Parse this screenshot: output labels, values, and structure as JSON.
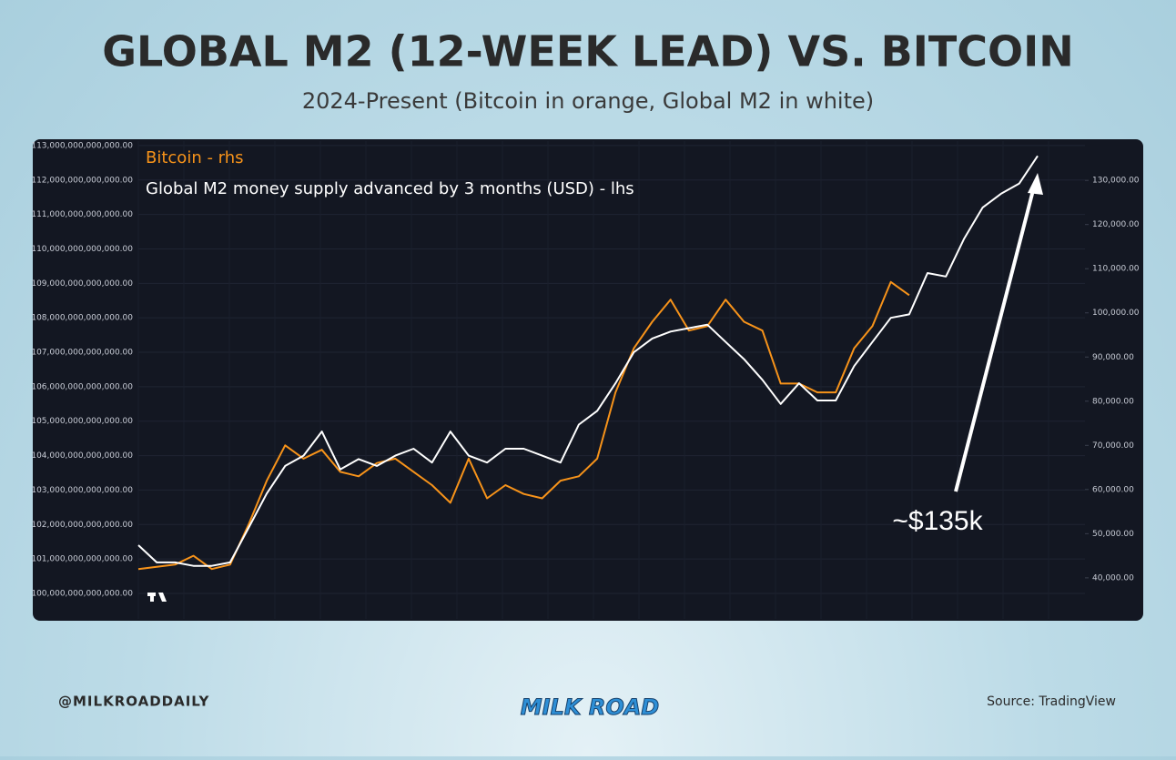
{
  "header": {
    "title": "GLOBAL M2 (12-WEEK LEAD) VS. BITCOIN",
    "subtitle": "2024-Present (Bitcoin in orange, Global M2 in white)"
  },
  "chart_data": {
    "type": "line",
    "categories": [
      null,
      null,
      null,
      null,
      null,
      null,
      null,
      null,
      null,
      null,
      null,
      null,
      null,
      null,
      null,
      null,
      null,
      null,
      null,
      null,
      null,
      null,
      null,
      null,
      null,
      null,
      null,
      null,
      null,
      null,
      null,
      null,
      null,
      null,
      null,
      null,
      null,
      null,
      null,
      null,
      null,
      null,
      null,
      null,
      null,
      null,
      null,
      null,
      null,
      null
    ],
    "series": [
      {
        "name": "Bitcoin - rhs",
        "color": "#f7931a",
        "axis": "y2",
        "values": [
          42000,
          42500,
          43000,
          45000,
          42000,
          43000,
          52000,
          62000,
          70000,
          67000,
          69000,
          64000,
          63000,
          66000,
          67000,
          64000,
          61000,
          57000,
          67000,
          58000,
          61000,
          59000,
          58000,
          62000,
          63000,
          67000,
          82000,
          92000,
          98000,
          103000,
          96000,
          97000,
          103000,
          98000,
          96000,
          84000,
          84000,
          82000,
          82000,
          92000,
          97000,
          107000,
          104000,
          null,
          null,
          null,
          null,
          null,
          null,
          null
        ]
      },
      {
        "name": "Global M2 money supply advanced by 3 months (USD) - lhs",
        "color": "#ffffff",
        "axis": "y",
        "values": [
          101400000000000.0,
          100900000000000.0,
          100900000000000.0,
          100800000000000.0,
          100800000000000.0,
          100900000000000.0,
          101900000000000.0,
          102900000000000.0,
          103700000000000.0,
          104000000000000.0,
          104700000000000.0,
          103600000000000.0,
          103900000000000.0,
          103700000000000.0,
          104000000000000.0,
          104200000000000.0,
          103800000000000.0,
          104700000000000.0,
          104000000000000.0,
          103800000000000.0,
          104200000000000.0,
          104200000000000.0,
          104000000000000.0,
          103800000000000.0,
          104900000000000.0,
          105300000000000.0,
          106100000000000.0,
          107000000000000.0,
          107400000000000.0,
          107600000000000.0,
          107700000000000.0,
          107800000000000.0,
          107300000000000.0,
          106800000000000.0,
          106200000000000.0,
          105500000000000.0,
          106100000000000.0,
          105600000000000.0,
          105600000000000.0,
          106600000000000.0,
          107300000000000.0,
          108000000000000.0,
          108100000000000.0,
          109300000000000.0,
          109200000000000.0,
          110300000000000.0,
          111200000000000.0,
          111600000000000.0,
          111900000000000.0,
          112700000000000.0
        ]
      }
    ],
    "ylim": [
      99260000000000.0,
      113130000000000.0
    ],
    "yticks": [
      {
        "value": 100000000000000,
        "label": "100,000,000,000,000.00"
      },
      {
        "value": 101000000000000,
        "label": "101,000,000,000,000.00"
      },
      {
        "value": 102000000000000,
        "label": "102,000,000,000,000.00"
      },
      {
        "value": 103000000000000,
        "label": "103,000,000,000,000.00"
      },
      {
        "value": 104000000000000,
        "label": "104,000,000,000,000.00"
      },
      {
        "value": 105000000000000,
        "label": "105,000,000,000,000.00"
      },
      {
        "value": 106000000000000,
        "label": "106,000,000,000,000.00"
      },
      {
        "value": 107000000000000,
        "label": "107,000,000,000,000.00"
      },
      {
        "value": 108000000000000,
        "label": "108,000,000,000,000.00"
      },
      {
        "value": 109000000000000,
        "label": "109,000,000,000,000.00"
      },
      {
        "value": 110000000000000,
        "label": "110,000,000,000,000.00"
      },
      {
        "value": 111000000000000,
        "label": "111,000,000,000,000.00"
      },
      {
        "value": 112000000000000,
        "label": "112,000,000,000,000.00"
      },
      {
        "value": 113000000000000,
        "label": "113,000,000,000,000.00"
      }
    ],
    "y2lim": [
      30700,
      138900
    ],
    "y2ticks": [
      {
        "value": 40000,
        "label": "40,000.00"
      },
      {
        "value": 50000,
        "label": "50,000.00"
      },
      {
        "value": 60000,
        "label": "60,000.00"
      },
      {
        "value": 70000,
        "label": "70,000.00"
      },
      {
        "value": 80000,
        "label": "80,000.00"
      },
      {
        "value": 90000,
        "label": "90,000.00"
      },
      {
        "value": 100000,
        "label": "100,000.00"
      },
      {
        "value": 110000,
        "label": "110,000.00"
      },
      {
        "value": 120000,
        "label": "120,000.00"
      },
      {
        "value": 130000,
        "label": "130,000.00"
      }
    ],
    "grid": true,
    "annotation": "~$135k"
  },
  "footer": {
    "handle": "@MILKROADDAILY",
    "logo": "MILK ROAD",
    "source": "Source: TradingView"
  }
}
